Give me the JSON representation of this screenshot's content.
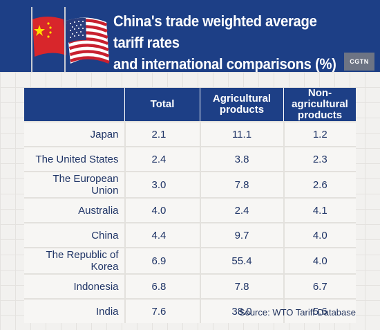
{
  "header": {
    "title_line1": "China's trade weighted average tariff rates",
    "title_line2": "and international comparisons (%)",
    "logo": "CGTN"
  },
  "colors": {
    "header_bg": "#1d3f86",
    "text": "#1f3466",
    "page_bg": "#f2f1ef"
  },
  "icons": [
    "china-flag-icon",
    "us-flag-icon"
  ],
  "chart_data": {
    "type": "table",
    "columns": [
      "",
      "Total",
      "Agricultural products",
      "Non-agricultural products"
    ],
    "rows": [
      {
        "country": "Japan",
        "total": "2.1",
        "agricultural": "11.1",
        "non_agricultural": "1.2"
      },
      {
        "country": "The United States",
        "total": "2.4",
        "agricultural": "3.8",
        "non_agricultural": "2.3"
      },
      {
        "country": "The European Union",
        "total": "3.0",
        "agricultural": "7.8",
        "non_agricultural": "2.6"
      },
      {
        "country": "Australia",
        "total": "4.0",
        "agricultural": "2.4",
        "non_agricultural": "4.1"
      },
      {
        "country": "China",
        "total": "4.4",
        "agricultural": "9.7",
        "non_agricultural": "4.0"
      },
      {
        "country": "The Republic of Korea",
        "total": "6.9",
        "agricultural": "55.4",
        "non_agricultural": "4.0"
      },
      {
        "country": "Indonesia",
        "total": "6.8",
        "agricultural": "7.8",
        "non_agricultural": "6.7"
      },
      {
        "country": "India",
        "total": "7.6",
        "agricultural": "38.0",
        "non_agricultural": "5.6"
      }
    ]
  },
  "source": "Source: WTO Tariff Database"
}
